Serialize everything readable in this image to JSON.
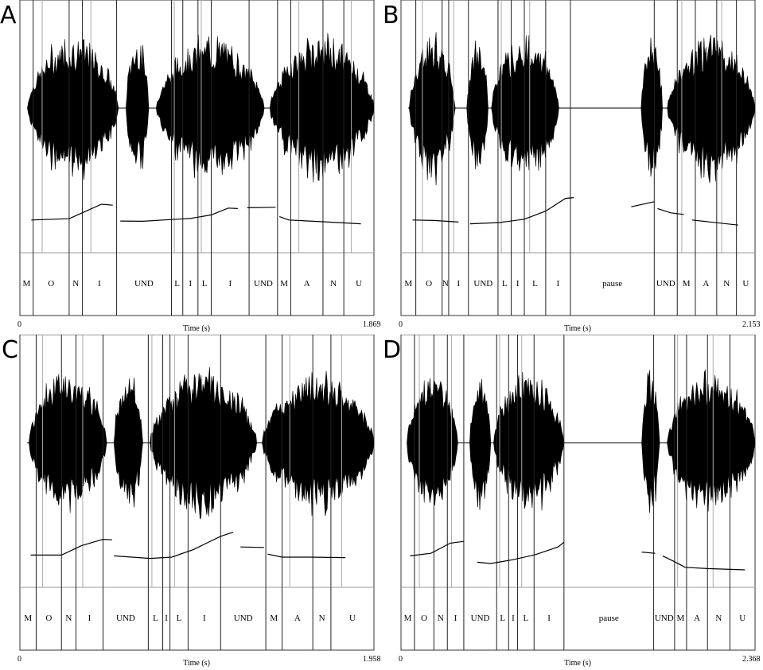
{
  "chart_data": [
    {
      "panel": "A",
      "type": "waveform",
      "xlabel": "Time (s)",
      "xlim": [
        0,
        1.869
      ],
      "tick_labels": [
        "0",
        "1.869"
      ],
      "segments": [
        {
          "label": "M",
          "start": 0.0,
          "end": 0.07
        },
        {
          "label": "O",
          "start": 0.07,
          "end": 0.26
        },
        {
          "label": "N",
          "start": 0.26,
          "end": 0.33
        },
        {
          "label": "I",
          "start": 0.33,
          "end": 0.51
        },
        {
          "label": "UND",
          "start": 0.51,
          "end": 0.8
        },
        {
          "label": "L",
          "start": 0.8,
          "end": 0.86
        },
        {
          "label": "I",
          "start": 0.86,
          "end": 0.94
        },
        {
          "label": "L",
          "start": 0.94,
          "end": 1.01
        },
        {
          "label": "I",
          "start": 1.01,
          "end": 1.21
        },
        {
          "label": "UND",
          "start": 1.21,
          "end": 1.36
        },
        {
          "label": "M",
          "start": 1.36,
          "end": 1.43
        },
        {
          "label": "A",
          "start": 1.43,
          "end": 1.6
        },
        {
          "label": "N",
          "start": 1.6,
          "end": 1.71
        },
        {
          "label": "U",
          "start": 1.71,
          "end": 1.869
        }
      ],
      "sound": [
        [
          0.04,
          0.52
        ],
        [
          0.56,
          0.68
        ],
        [
          0.72,
          1.29
        ],
        [
          1.32,
          1.869
        ]
      ],
      "pitch": [
        [
          [
            0.06,
            0.1
          ],
          [
            0.26,
            0.15
          ],
          [
            0.35,
            0.45
          ],
          [
            0.43,
            0.72
          ],
          [
            0.49,
            0.68
          ]
        ],
        [
          [
            0.53,
            0.06
          ],
          [
            0.65,
            0.05
          ],
          [
            0.8,
            0.12
          ],
          [
            0.9,
            0.16
          ],
          [
            1.01,
            0.3
          ],
          [
            1.1,
            0.57
          ],
          [
            1.15,
            0.55
          ]
        ],
        [
          [
            1.2,
            0.58
          ],
          [
            1.35,
            0.6
          ]
        ],
        [
          [
            1.37,
            0.23
          ],
          [
            1.42,
            0.1
          ],
          [
            1.6,
            0.03
          ],
          [
            1.8,
            -0.05
          ]
        ]
      ]
    },
    {
      "panel": "B",
      "type": "waveform",
      "xlabel": "Time (s)",
      "xlim": [
        0,
        2.153
      ],
      "tick_labels": [
        "0",
        "2.153"
      ],
      "segments": [
        {
          "label": "M",
          "start": 0.0,
          "end": 0.09
        },
        {
          "label": "O",
          "start": 0.09,
          "end": 0.25
        },
        {
          "label": "N",
          "start": 0.25,
          "end": 0.29
        },
        {
          "label": "I",
          "start": 0.29,
          "end": 0.41
        },
        {
          "label": "UND",
          "start": 0.41,
          "end": 0.59
        },
        {
          "label": "L",
          "start": 0.59,
          "end": 0.67
        },
        {
          "label": "I",
          "start": 0.67,
          "end": 0.75
        },
        {
          "label": "L",
          "start": 0.75,
          "end": 0.88
        },
        {
          "label": "I",
          "start": 0.88,
          "end": 1.03
        },
        {
          "label": "pause",
          "start": 1.03,
          "end": 1.54
        },
        {
          "label": "UND",
          "start": 1.54,
          "end": 1.68
        },
        {
          "label": "M",
          "start": 1.68,
          "end": 1.79
        },
        {
          "label": "A",
          "start": 1.79,
          "end": 1.92
        },
        {
          "label": "N",
          "start": 1.92,
          "end": 2.04
        },
        {
          "label": "U",
          "start": 2.04,
          "end": 2.153
        }
      ],
      "sound": [
        [
          0.05,
          0.33
        ],
        [
          0.4,
          0.53
        ],
        [
          0.55,
          0.96
        ],
        [
          1.46,
          1.59
        ],
        [
          1.62,
          2.153
        ]
      ],
      "pitch": [
        [
          [
            0.07,
            0.1
          ],
          [
            0.2,
            0.08
          ],
          [
            0.35,
            0.02
          ]
        ],
        [
          [
            0.42,
            -0.05
          ],
          [
            0.6,
            0.0
          ],
          [
            0.75,
            0.13
          ],
          [
            0.88,
            0.45
          ],
          [
            1.0,
            0.95
          ],
          [
            1.05,
            0.98
          ]
        ],
        [
          [
            1.4,
            0.62
          ],
          [
            1.54,
            0.82
          ]
        ],
        [
          [
            1.56,
            0.55
          ],
          [
            1.64,
            0.38
          ],
          [
            1.72,
            0.32
          ]
        ],
        [
          [
            1.77,
            0.1
          ],
          [
            2.05,
            -0.1
          ]
        ]
      ]
    },
    {
      "panel": "C",
      "type": "waveform",
      "xlabel": "Time (s)",
      "xlim": [
        0,
        1.958
      ],
      "tick_labels": [
        "0",
        "1.958"
      ],
      "segments": [
        {
          "label": "M",
          "start": 0.0,
          "end": 0.09
        },
        {
          "label": "O",
          "start": 0.09,
          "end": 0.23
        },
        {
          "label": "N",
          "start": 0.23,
          "end": 0.31
        },
        {
          "label": "I",
          "start": 0.31,
          "end": 0.46
        },
        {
          "label": "UND",
          "start": 0.46,
          "end": 0.71
        },
        {
          "label": "L",
          "start": 0.71,
          "end": 0.79
        },
        {
          "label": "I",
          "start": 0.79,
          "end": 0.83
        },
        {
          "label": "L",
          "start": 0.83,
          "end": 0.93
        },
        {
          "label": "I",
          "start": 0.93,
          "end": 1.11
        },
        {
          "label": "UND",
          "start": 1.11,
          "end": 1.36
        },
        {
          "label": "M",
          "start": 1.36,
          "end": 1.45
        },
        {
          "label": "A",
          "start": 1.45,
          "end": 1.62
        },
        {
          "label": "N",
          "start": 1.62,
          "end": 1.72
        },
        {
          "label": "U",
          "start": 1.72,
          "end": 1.958
        }
      ],
      "sound": [
        [
          0.05,
          0.48
        ],
        [
          0.52,
          0.68
        ],
        [
          0.72,
          1.31
        ],
        [
          1.34,
          1.958
        ]
      ],
      "pitch": [
        [
          [
            0.06,
            0.08
          ],
          [
            0.23,
            0.08
          ],
          [
            0.34,
            0.45
          ],
          [
            0.46,
            0.7
          ],
          [
            0.51,
            0.68
          ]
        ],
        [
          [
            0.52,
            0.05
          ],
          [
            0.72,
            -0.05
          ],
          [
            0.84,
            0.0
          ],
          [
            0.96,
            0.3
          ],
          [
            1.11,
            0.82
          ],
          [
            1.18,
            0.98
          ]
        ],
        [
          [
            1.22,
            0.4
          ],
          [
            1.35,
            0.38
          ]
        ],
        [
          [
            1.37,
            0.12
          ],
          [
            1.45,
            0.0
          ],
          [
            1.6,
            0.0
          ],
          [
            1.8,
            -0.02
          ]
        ]
      ]
    },
    {
      "panel": "D",
      "type": "waveform",
      "xlabel": "Time (s)",
      "xlim": [
        0,
        2.368
      ],
      "tick_labels": [
        "0",
        "2.368"
      ],
      "segments": [
        {
          "label": "M",
          "start": 0.0,
          "end": 0.09
        },
        {
          "label": "O",
          "start": 0.09,
          "end": 0.22
        },
        {
          "label": "N",
          "start": 0.22,
          "end": 0.31
        },
        {
          "label": "I",
          "start": 0.31,
          "end": 0.42
        },
        {
          "label": "UND",
          "start": 0.42,
          "end": 0.64
        },
        {
          "label": "L",
          "start": 0.64,
          "end": 0.72
        },
        {
          "label": "I",
          "start": 0.72,
          "end": 0.78
        },
        {
          "label": "L",
          "start": 0.78,
          "end": 0.89
        },
        {
          "label": "I",
          "start": 0.89,
          "end": 1.09
        },
        {
          "label": "pause",
          "start": 1.09,
          "end": 1.69
        },
        {
          "label": "UND",
          "start": 1.69,
          "end": 1.83
        },
        {
          "label": "M",
          "start": 1.83,
          "end": 1.91
        },
        {
          "label": "A",
          "start": 1.91,
          "end": 2.05
        },
        {
          "label": "N",
          "start": 2.05,
          "end": 2.2
        },
        {
          "label": "U",
          "start": 2.2,
          "end": 2.368
        }
      ],
      "sound": [
        [
          0.04,
          0.38
        ],
        [
          0.46,
          0.6
        ],
        [
          0.62,
          1.09
        ],
        [
          1.61,
          1.73
        ],
        [
          1.78,
          2.368
        ]
      ],
      "pitch": [
        [
          [
            0.06,
            0.05
          ],
          [
            0.2,
            0.15
          ],
          [
            0.33,
            0.55
          ],
          [
            0.42,
            0.62
          ]
        ],
        [
          [
            0.51,
            -0.2
          ],
          [
            0.6,
            -0.25
          ],
          [
            0.75,
            -0.1
          ],
          [
            0.9,
            0.1
          ],
          [
            1.05,
            0.4
          ],
          [
            1.09,
            0.58
          ]
        ],
        [
          [
            1.61,
            0.2
          ],
          [
            1.7,
            0.15
          ]
        ],
        [
          [
            1.75,
            0.05
          ],
          [
            1.82,
            -0.15
          ],
          [
            1.9,
            -0.4
          ],
          [
            2.05,
            -0.45
          ],
          [
            2.3,
            -0.5
          ]
        ]
      ]
    }
  ]
}
